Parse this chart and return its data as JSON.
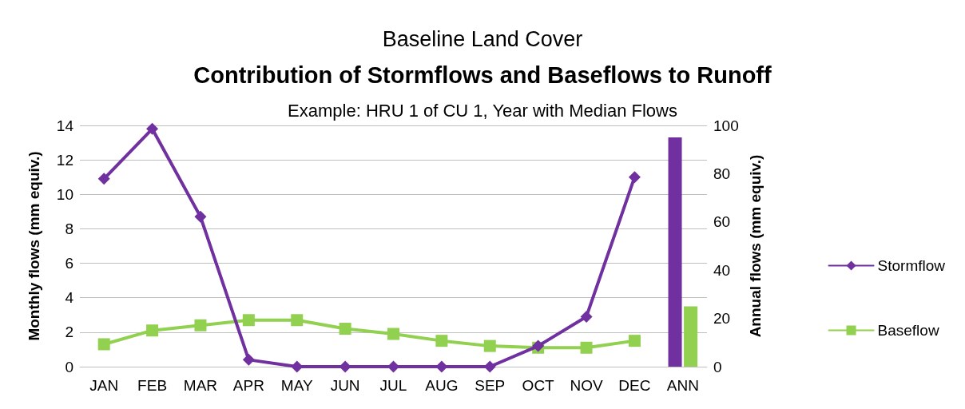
{
  "chart_data": {
    "type": "line",
    "title": "Contribution of Stormflows and Baseflows to Runoff",
    "subtitle": "Example: HRU 1 of CU 1, Year with Median Flows",
    "annotations": [
      "Baseline Land Cover"
    ],
    "ylabel": "Monthly flows (mm equiv.)",
    "y2label": "Annual flows (mm equiv.)",
    "categories": [
      "JAN",
      "FEB",
      "MAR",
      "APR",
      "MAY",
      "JUN",
      "JUL",
      "AUG",
      "SEP",
      "OCT",
      "NOV",
      "DEC",
      "ANN"
    ],
    "series": [
      {
        "name": "Stormflow",
        "color": "#7030a0",
        "marker": "diamond",
        "values": [
          10.9,
          13.8,
          8.7,
          0.4,
          0,
          0,
          0,
          0,
          0,
          1.2,
          2.9,
          11.0,
          null
        ]
      },
      {
        "name": "Baseflow",
        "color": "#92d050",
        "marker": "square",
        "values": [
          1.3,
          2.1,
          2.4,
          2.7,
          2.7,
          2.2,
          1.9,
          1.5,
          1.2,
          1.1,
          1.1,
          1.5,
          null
        ]
      },
      {
        "type": "bar",
        "axis": "y2",
        "color": "#7030a0",
        "values": [
          null,
          null,
          null,
          null,
          null,
          null,
          null,
          null,
          null,
          null,
          null,
          null,
          95
        ]
      },
      {
        "type": "bar",
        "axis": "y2",
        "color": "#92d050",
        "values": [
          null,
          null,
          null,
          null,
          null,
          null,
          null,
          null,
          null,
          null,
          null,
          null,
          25
        ]
      }
    ],
    "ylim": [
      0,
      14
    ],
    "yticks": [
      0,
      2,
      4,
      6,
      8,
      10,
      12,
      14
    ],
    "y2lim": [
      0,
      100
    ],
    "y2ticks": [
      0,
      20,
      40,
      60,
      80,
      100
    ],
    "grid": "y",
    "legend": "right",
    "line_style": "solid"
  }
}
